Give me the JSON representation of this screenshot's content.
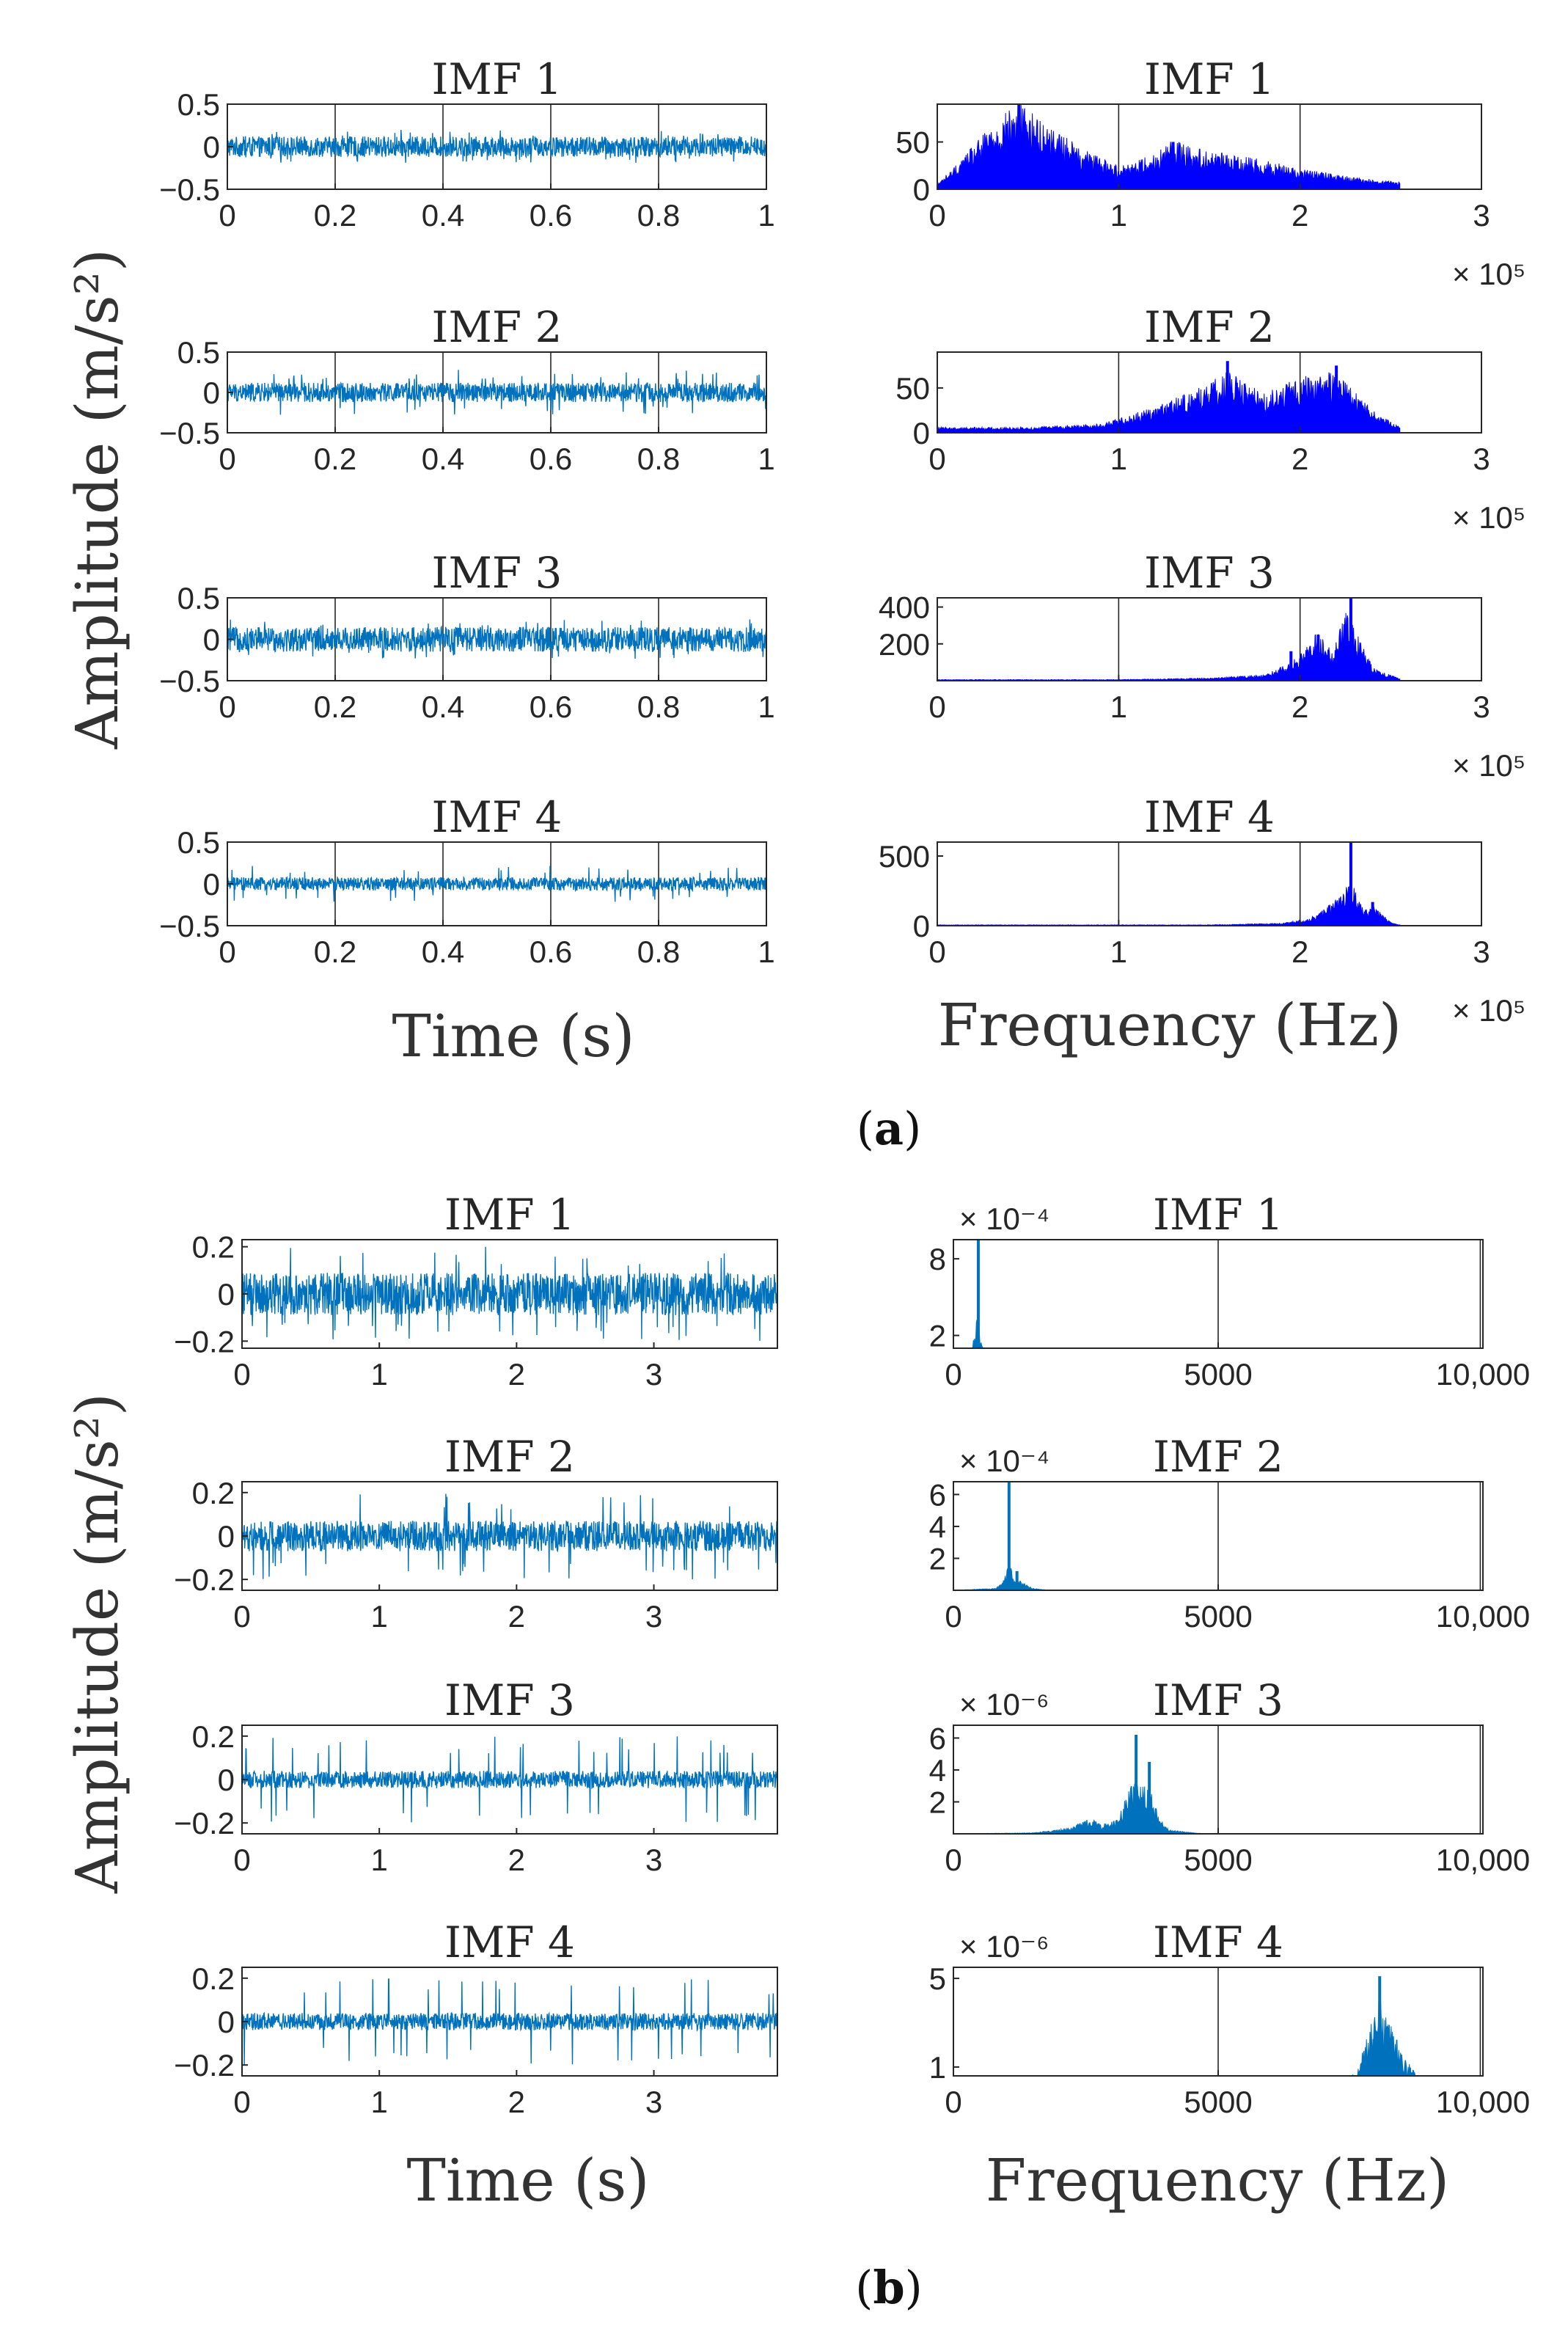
{
  "figure": {
    "section_a_label_open": "(",
    "section_a_label_letter": "a",
    "section_a_label_close": ")",
    "section_b_label_open": "(",
    "section_b_label_letter": "b",
    "section_b_label_close": ")",
    "ylabel_a": "Amplitude (m/s²)",
    "ylabel_b": "Amplitude (m/s²)",
    "time_xlabel_a": "Time (s)",
    "freq_xlabel_a": "Frequency (Hz)",
    "time_xlabel_b": "Time (s)",
    "freq_xlabel_b": "Frequency (Hz)"
  },
  "colors": {
    "time_signal": "#0072bd",
    "spectrum_a": "#0000ff",
    "spectrum_b": "#0072bd",
    "axis": "#262626"
  },
  "chart_data": [
    {
      "id": "a-time-1",
      "panel": "a",
      "type": "line",
      "title": "IMF 1",
      "xlabel": "",
      "ylabel": "",
      "xlim": [
        0,
        1
      ],
      "ylim": [
        -0.5,
        0.5
      ],
      "xticks": [
        "0",
        "0.2",
        "0.4",
        "0.6",
        "0.8",
        "1"
      ],
      "yticks": [
        "−0.5",
        "0",
        "0.5"
      ],
      "amplitude": 0.12,
      "spike": 0.2,
      "gridlines_x": [
        0.2,
        0.4,
        0.6,
        0.8
      ]
    },
    {
      "id": "a-time-2",
      "panel": "a",
      "type": "line",
      "title": "IMF 2",
      "xlabel": "",
      "ylabel": "",
      "xlim": [
        0,
        1
      ],
      "ylim": [
        -0.5,
        0.5
      ],
      "xticks": [
        "0",
        "0.2",
        "0.4",
        "0.6",
        "0.8",
        "1"
      ],
      "yticks": [
        "−0.5",
        "0",
        "0.5"
      ],
      "amplitude": 0.12,
      "spike": 0.28,
      "gridlines_x": [
        0.2,
        0.4,
        0.6,
        0.8
      ]
    },
    {
      "id": "a-time-3",
      "panel": "a",
      "type": "line",
      "title": "IMF 3",
      "xlabel": "",
      "ylabel": "",
      "xlim": [
        0,
        1
      ],
      "ylim": [
        -0.5,
        0.5
      ],
      "xticks": [
        "0",
        "0.2",
        "0.4",
        "0.6",
        "0.8",
        "1"
      ],
      "yticks": [
        "−0.5",
        "0",
        "0.5"
      ],
      "amplitude": 0.15,
      "spike": 0.24,
      "gridlines_x": [
        0.2,
        0.4,
        0.6,
        0.8
      ]
    },
    {
      "id": "a-time-4",
      "panel": "a",
      "type": "line",
      "title": "IMF 4",
      "xlabel": "",
      "ylabel": "",
      "xlim": [
        0,
        1
      ],
      "ylim": [
        -0.5,
        0.5
      ],
      "xticks": [
        "0",
        "0.2",
        "0.4",
        "0.6",
        "0.8",
        "1"
      ],
      "yticks": [
        "−0.5",
        "0",
        "0.5"
      ],
      "amplitude": 0.08,
      "spike": 0.22,
      "gridlines_x": [
        0.2,
        0.4,
        0.6,
        0.8
      ]
    },
    {
      "id": "a-freq-1",
      "panel": "a",
      "type": "area",
      "title": "IMF 1",
      "xlabel": "",
      "ylabel": "",
      "xlim": [
        0,
        300000
      ],
      "ylim": [
        0,
        90
      ],
      "xticks": [
        "0",
        "1",
        "2",
        "3"
      ],
      "exponent": "× 10⁵",
      "ytick_values": [
        0,
        50
      ],
      "yticks": [
        "0",
        "50"
      ],
      "x_end": 255000,
      "peaks": [
        {
          "x": 45000,
          "y": 90
        },
        {
          "x": 130000,
          "y": 50
        }
      ],
      "envelope_x": [
        0,
        10000,
        30000,
        45000,
        60000,
        80000,
        100000,
        120000,
        130000,
        150000,
        170000,
        200000,
        230000,
        255000
      ],
      "envelope_y": [
        5,
        20,
        55,
        75,
        55,
        35,
        20,
        30,
        42,
        32,
        28,
        18,
        10,
        6
      ],
      "gridlines_x": [
        100000,
        200000
      ]
    },
    {
      "id": "a-freq-2",
      "panel": "a",
      "type": "area",
      "title": "IMF 2",
      "xlabel": "",
      "ylabel": "",
      "xlim": [
        0,
        300000
      ],
      "ylim": [
        0,
        90
      ],
      "xticks": [
        "0",
        "1",
        "2",
        "3"
      ],
      "exponent": "× 10⁵",
      "ytick_values": [
        0,
        50
      ],
      "yticks": [
        "0",
        "50"
      ],
      "x_end": 255000,
      "peaks": [
        {
          "x": 160000,
          "y": 80
        },
        {
          "x": 220000,
          "y": 75
        }
      ],
      "envelope_x": [
        0,
        50000,
        90000,
        110000,
        130000,
        150000,
        160000,
        180000,
        200000,
        220000,
        240000,
        255000
      ],
      "envelope_y": [
        5,
        5,
        8,
        18,
        30,
        45,
        55,
        35,
        50,
        55,
        20,
        5
      ],
      "gridlines_x": [
        100000,
        200000
      ]
    },
    {
      "id": "a-freq-3",
      "panel": "a",
      "type": "area",
      "title": "IMF 3",
      "xlabel": "",
      "ylabel": "",
      "xlim": [
        0,
        300000
      ],
      "ylim": [
        0,
        450
      ],
      "xticks": [
        "0",
        "1",
        "2",
        "3"
      ],
      "exponent": "× 10⁵",
      "ytick_values": [
        200,
        400
      ],
      "yticks": [
        "200",
        "400"
      ],
      "x_end": 255000,
      "peaks": [
        {
          "x": 195000,
          "y": 160
        },
        {
          "x": 210000,
          "y": 250
        },
        {
          "x": 228000,
          "y": 450
        }
      ],
      "envelope_x": [
        0,
        100000,
        150000,
        180000,
        195000,
        205000,
        210000,
        218000,
        225000,
        230000,
        240000,
        255000
      ],
      "envelope_y": [
        5,
        5,
        12,
        25,
        80,
        160,
        220,
        120,
        300,
        240,
        60,
        8
      ],
      "gridlines_x": [
        100000,
        200000
      ]
    },
    {
      "id": "a-freq-4",
      "panel": "a",
      "type": "area",
      "title": "IMF 4",
      "xlabel": "",
      "ylabel": "",
      "xlim": [
        0,
        300000
      ],
      "ylim": [
        0,
        600
      ],
      "xticks": [
        "0",
        "1",
        "2",
        "3"
      ],
      "exponent": "× 10⁵",
      "ytick_values": [
        0,
        500
      ],
      "yticks": [
        "0",
        "500"
      ],
      "x_end": 255000,
      "peaks": [
        {
          "x": 228000,
          "y": 600
        },
        {
          "x": 240000,
          "y": 170
        }
      ],
      "envelope_x": [
        0,
        150000,
        190000,
        205000,
        215000,
        222000,
        228000,
        235000,
        240000,
        250000,
        255000
      ],
      "envelope_y": [
        5,
        5,
        15,
        40,
        110,
        180,
        260,
        90,
        120,
        20,
        5
      ],
      "gridlines_x": [
        100000,
        200000
      ]
    },
    {
      "id": "b-time-1",
      "panel": "b",
      "type": "line",
      "title": "IMF 1",
      "xlabel": "",
      "ylabel": "",
      "xlim": [
        0,
        3.9
      ],
      "ylim": [
        -0.23,
        0.23
      ],
      "xticks": [
        "0",
        "1",
        "2",
        "3"
      ],
      "ytick_values": [
        -0.2,
        0,
        0.2
      ],
      "yticks": [
        "−0.2",
        "0",
        "0.2"
      ],
      "amplitude": 0.09,
      "spike": 0.2
    },
    {
      "id": "b-time-2",
      "panel": "b",
      "type": "line",
      "title": "IMF 2",
      "xlabel": "",
      "ylabel": "",
      "xlim": [
        0,
        3.9
      ],
      "ylim": [
        -0.25,
        0.25
      ],
      "xticks": [
        "0",
        "1",
        "2",
        "3"
      ],
      "ytick_values": [
        -0.2,
        0,
        0.2
      ],
      "yticks": [
        "−0.2",
        "0",
        "0.2"
      ],
      "amplitude": 0.07,
      "spike": 0.2
    },
    {
      "id": "b-time-3",
      "panel": "b",
      "type": "line",
      "title": "IMF 3",
      "xlabel": "",
      "ylabel": "",
      "xlim": [
        0,
        3.9
      ],
      "ylim": [
        -0.25,
        0.25
      ],
      "xticks": [
        "0",
        "1",
        "2",
        "3"
      ],
      "ytick_values": [
        -0.2,
        0,
        0.2
      ],
      "yticks": [
        "−0.2",
        "0",
        "0.2"
      ],
      "amplitude": 0.04,
      "spike": 0.2
    },
    {
      "id": "b-time-4",
      "panel": "b",
      "type": "line",
      "title": "IMF 4",
      "xlabel": "",
      "ylabel": "",
      "xlim": [
        0,
        3.9
      ],
      "ylim": [
        -0.25,
        0.25
      ],
      "xticks": [
        "0",
        "1",
        "2",
        "3"
      ],
      "ytick_values": [
        -0.2,
        0,
        0.2
      ],
      "yticks": [
        "−0.2",
        "0",
        "0.2"
      ],
      "amplitude": 0.04,
      "spike": 0.2
    },
    {
      "id": "b-freq-1",
      "panel": "b",
      "type": "area",
      "title": "IMF 1",
      "xlabel": "",
      "ylabel": "",
      "xlim": [
        0,
        10000
      ],
      "ylim": [
        0.0001,
        0.00095
      ],
      "xticks": [
        "0",
        "5000",
        "10,000"
      ],
      "exponent": "× 10⁻⁴",
      "ytick_values": [
        0.0002,
        0.0008
      ],
      "yticks": [
        "2",
        "8"
      ],
      "x_end": 10000,
      "peaks": [
        {
          "x": 470,
          "y": 0.00095
        }
      ],
      "envelope_x": [
        0,
        200,
        350,
        420,
        470,
        520,
        600,
        800,
        10000
      ],
      "envelope_y": [
        0,
        5e-05,
        0.0001,
        0.0002,
        0.0004,
        0.00015,
        3e-05,
        0,
        0
      ],
      "gridlines_x": [
        5000,
        9950
      ]
    },
    {
      "id": "b-freq-2",
      "panel": "b",
      "type": "area",
      "title": "IMF 2",
      "xlabel": "",
      "ylabel": "",
      "xlim": [
        0,
        10000
      ],
      "ylim": [
        0,
        0.00068
      ],
      "xticks": [
        "0",
        "5000",
        "10,000"
      ],
      "exponent": "× 10⁻⁴",
      "ytick_values": [
        0.0002,
        0.0004,
        0.0006
      ],
      "yticks": [
        "2",
        "4",
        "6"
      ],
      "x_end": 10000,
      "peaks": [
        {
          "x": 1050,
          "y": 0.00068
        },
        {
          "x": 1200,
          "y": 0.00012
        }
      ],
      "envelope_x": [
        0,
        800,
        950,
        1050,
        1150,
        1300,
        1500,
        1800,
        10000
      ],
      "envelope_y": [
        0,
        1e-05,
        5e-05,
        0.00015,
        7e-05,
        4e-05,
        1e-05,
        0,
        0
      ],
      "gridlines_x": [
        5000,
        9950
      ]
    },
    {
      "id": "b-freq-3",
      "panel": "b",
      "type": "area",
      "title": "IMF 3",
      "xlabel": "",
      "ylabel": "",
      "xlim": [
        0,
        10000
      ],
      "ylim": [
        0,
        6.8e-06
      ],
      "xticks": [
        "0",
        "5000",
        "10,000"
      ],
      "exponent": "× 10⁻⁶",
      "ytick_values": [
        2e-06,
        4e-06,
        6e-06
      ],
      "yticks": [
        "2",
        "4",
        "6"
      ],
      "x_end": 10000,
      "peaks": [
        {
          "x": 3450,
          "y": 6.2e-06
        },
        {
          "x": 3700,
          "y": 4.5e-06
        }
      ],
      "envelope_x": [
        0,
        1500,
        2200,
        2600,
        2800,
        3100,
        3300,
        3450,
        3600,
        3750,
        3900,
        4100,
        4600,
        5000,
        10000
      ],
      "envelope_y": [
        0,
        5e-08,
        3e-07,
        8e-07,
        5e-07,
        7e-07,
        2.2e-06,
        3e-06,
        2.5e-06,
        2e-06,
        7e-07,
        2e-07,
        3e-08,
        0,
        0
      ],
      "gridlines_x": [
        5000,
        9950
      ]
    },
    {
      "id": "b-freq-4",
      "panel": "b",
      "type": "area",
      "title": "IMF 4",
      "xlabel": "",
      "ylabel": "",
      "xlim": [
        0,
        10000
      ],
      "ylim": [
        6e-07,
        5.5e-06
      ],
      "xticks": [
        "0",
        "5000",
        "10,000"
      ],
      "exponent": "× 10⁻⁶",
      "ytick_values": [
        1e-06,
        5e-06
      ],
      "yticks": [
        "1",
        "5"
      ],
      "x_end": 10000,
      "peaks": [
        {
          "x": 8050,
          "y": 5.1e-06
        }
      ],
      "envelope_x": [
        0,
        6500,
        7200,
        7600,
        7850,
        8050,
        8250,
        8500,
        8800,
        9200,
        10000
      ],
      "envelope_y": [
        0,
        0,
        1e-07,
        6e-07,
        2.2e-06,
        3.6e-06,
        2.5e-06,
        1.2e-06,
        4e-07,
        0,
        0
      ],
      "gridlines_x": [
        5000,
        9950
      ]
    }
  ]
}
